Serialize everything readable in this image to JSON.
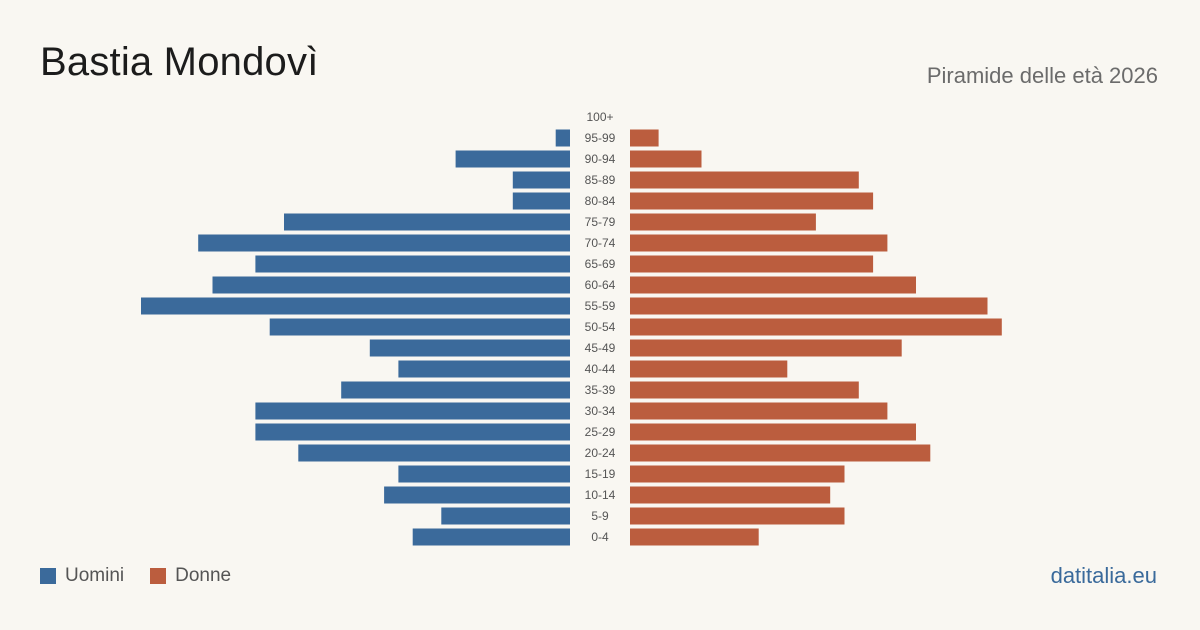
{
  "header": {
    "title": "Bastia Mondovì",
    "subtitle": "Piramide delle età 2026"
  },
  "legend": {
    "men_label": "Uomini",
    "women_label": "Donne"
  },
  "footer": {
    "source": "datitalia.eu"
  },
  "colors": {
    "men": "#3b6a9b",
    "women": "#bb5d3e",
    "background": "#f9f7f2"
  },
  "chart_data": {
    "type": "bar",
    "orientation": "horizontal-pyramid",
    "categories": [
      "100+",
      "95-99",
      "90-94",
      "85-89",
      "80-84",
      "75-79",
      "70-74",
      "65-69",
      "60-64",
      "55-59",
      "50-54",
      "45-49",
      "40-44",
      "35-39",
      "30-34",
      "25-29",
      "20-24",
      "15-19",
      "10-14",
      "5-9",
      "0-4"
    ],
    "series": [
      {
        "name": "Uomini",
        "values": [
          0,
          1,
          8,
          4,
          4,
          20,
          26,
          22,
          25,
          30,
          21,
          14,
          12,
          16,
          22,
          22,
          19,
          12,
          13,
          9,
          11
        ]
      },
      {
        "name": "Donne",
        "values": [
          0,
          2,
          5,
          16,
          17,
          13,
          18,
          17,
          20,
          25,
          26,
          19,
          11,
          16,
          18,
          20,
          21,
          15,
          14,
          15,
          9
        ]
      }
    ],
    "max_value": 30,
    "legend_position": "bottom-left",
    "grid": false
  }
}
